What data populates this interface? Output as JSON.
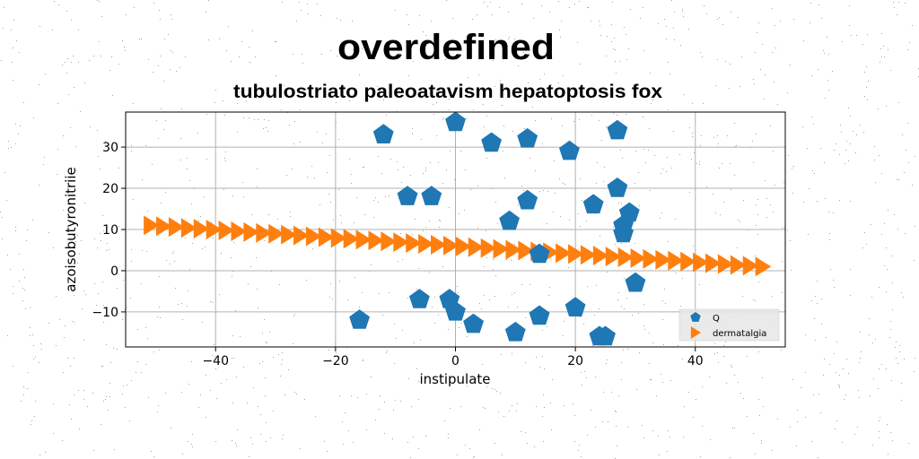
{
  "chart_data": {
    "type": "scatter",
    "title": "overdefined",
    "subtitle": "tubulostriato paleoatavism hepatoptosis fox",
    "xlabel": "instipulate",
    "ylabel": "azoisobutyronitriie",
    "xlim": [
      -55,
      55
    ],
    "ylim": [
      -18.5,
      38.5
    ],
    "xticks": [
      -40,
      -20,
      0,
      20,
      40
    ],
    "xtick_labels": [
      "−40",
      "−20",
      "0",
      "20",
      "40"
    ],
    "yticks": [
      -10,
      0,
      10,
      20,
      30
    ],
    "ytick_labels": [
      "−10",
      "0",
      "10",
      "20",
      "30"
    ],
    "grid": true,
    "legend_position": "lower-right",
    "series": [
      {
        "name": "Q",
        "marker": "pentagon",
        "color": "#1f77b4",
        "points": [
          [
            0,
            36
          ],
          [
            -12,
            33
          ],
          [
            6,
            31
          ],
          [
            12,
            32
          ],
          [
            19,
            29
          ],
          [
            27,
            34
          ],
          [
            -8,
            18
          ],
          [
            -4,
            18
          ],
          [
            12,
            17
          ],
          [
            27,
            20
          ],
          [
            23,
            16
          ],
          [
            29,
            14
          ],
          [
            9,
            12
          ],
          [
            28,
            11
          ],
          [
            28,
            9
          ],
          [
            14,
            4
          ],
          [
            30,
            -3
          ],
          [
            -6,
            -7
          ],
          [
            -1,
            -7
          ],
          [
            0,
            -10
          ],
          [
            3,
            -13
          ],
          [
            14,
            -11
          ],
          [
            20,
            -9
          ],
          [
            -16,
            -12
          ],
          [
            10,
            -15
          ],
          [
            24,
            -16
          ],
          [
            25,
            -16
          ]
        ]
      },
      {
        "name": "dermatalgia",
        "marker": "triangle-right",
        "color": "#ff7f0e",
        "x_start": -51,
        "x_end": 51,
        "y_start": 11,
        "y_end": 1,
        "count": 50
      }
    ]
  }
}
